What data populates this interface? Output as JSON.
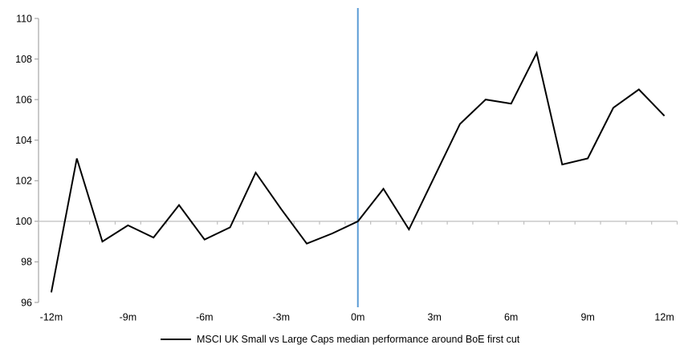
{
  "chart_data": {
    "type": "line",
    "title": "",
    "xlabel": "",
    "ylabel": "",
    "categories": [
      -12,
      -11,
      -10,
      -9,
      -8,
      -7,
      -6,
      -5,
      -4,
      -3,
      -2,
      -1,
      0,
      1,
      2,
      3,
      4,
      5,
      6,
      7,
      8,
      9,
      10,
      11,
      12
    ],
    "category_suffix": "m",
    "series": [
      {
        "name": "MSCI UK Small vs Large Caps median performance around BoE first cut",
        "values": [
          96.5,
          103.1,
          99.0,
          99.8,
          99.2,
          100.8,
          99.1,
          99.7,
          102.4,
          100.6,
          98.9,
          99.4,
          100.0,
          101.6,
          99.6,
          102.2,
          104.8,
          106.0,
          105.8,
          108.3,
          102.8,
          103.1,
          105.6,
          106.5,
          105.2
        ]
      }
    ],
    "ylim": [
      96,
      110
    ],
    "y_ticks": [
      96,
      98,
      100,
      102,
      104,
      106,
      108,
      110
    ],
    "x_tick_labels": [
      "-12m",
      "-9m",
      "-6m",
      "-3m",
      "0m",
      "3m",
      "6m",
      "9m",
      "12m"
    ],
    "x_label_step": 3,
    "baseline_value": 100,
    "event_line_at": "0m",
    "grid": "off",
    "legend_position": "bottom",
    "colors": {
      "series_line": "#000000",
      "event_line": "#5B9BD5",
      "axis_line": "#A6A6A6",
      "baseline_line": "#BFBFBF",
      "tick_text": "#000000",
      "background": "#FFFFFF"
    }
  },
  "legend": {
    "label": "MSCI UK Small vs Large Caps median performance around BoE first cut"
  }
}
